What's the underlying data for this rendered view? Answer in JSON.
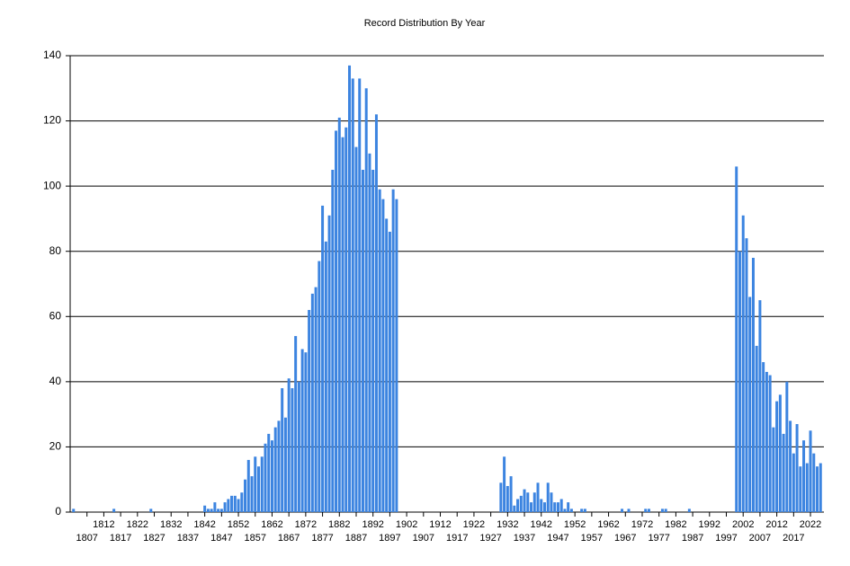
{
  "chart_data": {
    "type": "bar",
    "title": "Record Distribution By Year",
    "x": [
      1803,
      1815,
      1826,
      1842,
      1843,
      1844,
      1845,
      1846,
      1847,
      1848,
      1849,
      1850,
      1851,
      1852,
      1853,
      1854,
      1855,
      1856,
      1857,
      1858,
      1859,
      1860,
      1861,
      1862,
      1863,
      1864,
      1865,
      1866,
      1867,
      1868,
      1869,
      1870,
      1871,
      1872,
      1873,
      1874,
      1875,
      1876,
      1877,
      1878,
      1879,
      1880,
      1881,
      1882,
      1883,
      1884,
      1885,
      1886,
      1887,
      1888,
      1889,
      1890,
      1891,
      1892,
      1893,
      1894,
      1895,
      1896,
      1897,
      1898,
      1899,
      1930,
      1931,
      1932,
      1933,
      1934,
      1935,
      1936,
      1937,
      1938,
      1939,
      1940,
      1941,
      1942,
      1943,
      1944,
      1945,
      1946,
      1947,
      1948,
      1949,
      1950,
      1951,
      1954,
      1955,
      1966,
      1968,
      1973,
      1974,
      1978,
      1979,
      1986,
      2000,
      2001,
      2002,
      2003,
      2004,
      2005,
      2006,
      2007,
      2008,
      2009,
      2010,
      2011,
      2012,
      2013,
      2014,
      2015,
      2016,
      2017,
      2018,
      2019,
      2020,
      2021,
      2022,
      2023,
      2024,
      2025
    ],
    "values": [
      1,
      1,
      1,
      2,
      1,
      1,
      3,
      1,
      1,
      3,
      4,
      5,
      5,
      4,
      6,
      10,
      16,
      11,
      17,
      14,
      17,
      21,
      24,
      22,
      26,
      28,
      38,
      29,
      41,
      38,
      54,
      40,
      50,
      49,
      62,
      67,
      69,
      77,
      94,
      83,
      91,
      105,
      117,
      121,
      115,
      118,
      137,
      133,
      112,
      133,
      105,
      130,
      110,
      105,
      122,
      99,
      96,
      90,
      86,
      99,
      96,
      9,
      17,
      8,
      11,
      2,
      4,
      5,
      7,
      6,
      3,
      6,
      9,
      4,
      3,
      9,
      6,
      3,
      3,
      4,
      1,
      3,
      1,
      1,
      1,
      1,
      1,
      1,
      1,
      1,
      1,
      1,
      106,
      80,
      91,
      84,
      66,
      78,
      51,
      65,
      46,
      43,
      42,
      26,
      34,
      36,
      24,
      40,
      28,
      18,
      27,
      14,
      22,
      15,
      25,
      18,
      14,
      15
    ],
    "color": "#3c84e0",
    "xlim": [
      1802,
      2026
    ],
    "xticks": [
      1807,
      1812,
      1817,
      1822,
      1827,
      1832,
      1837,
      1842,
      1847,
      1852,
      1857,
      1862,
      1867,
      1872,
      1877,
      1882,
      1887,
      1892,
      1897,
      1902,
      1907,
      1912,
      1917,
      1922,
      1927,
      1932,
      1937,
      1942,
      1947,
      1952,
      1957,
      1962,
      1967,
      1972,
      1977,
      1982,
      1987,
      1992,
      1997,
      2002,
      2007,
      2012,
      2017,
      2022
    ],
    "ylim": [
      0,
      140
    ],
    "yticks": [
      0,
      20,
      40,
      60,
      80,
      100,
      120,
      140
    ],
    "grid": true
  }
}
